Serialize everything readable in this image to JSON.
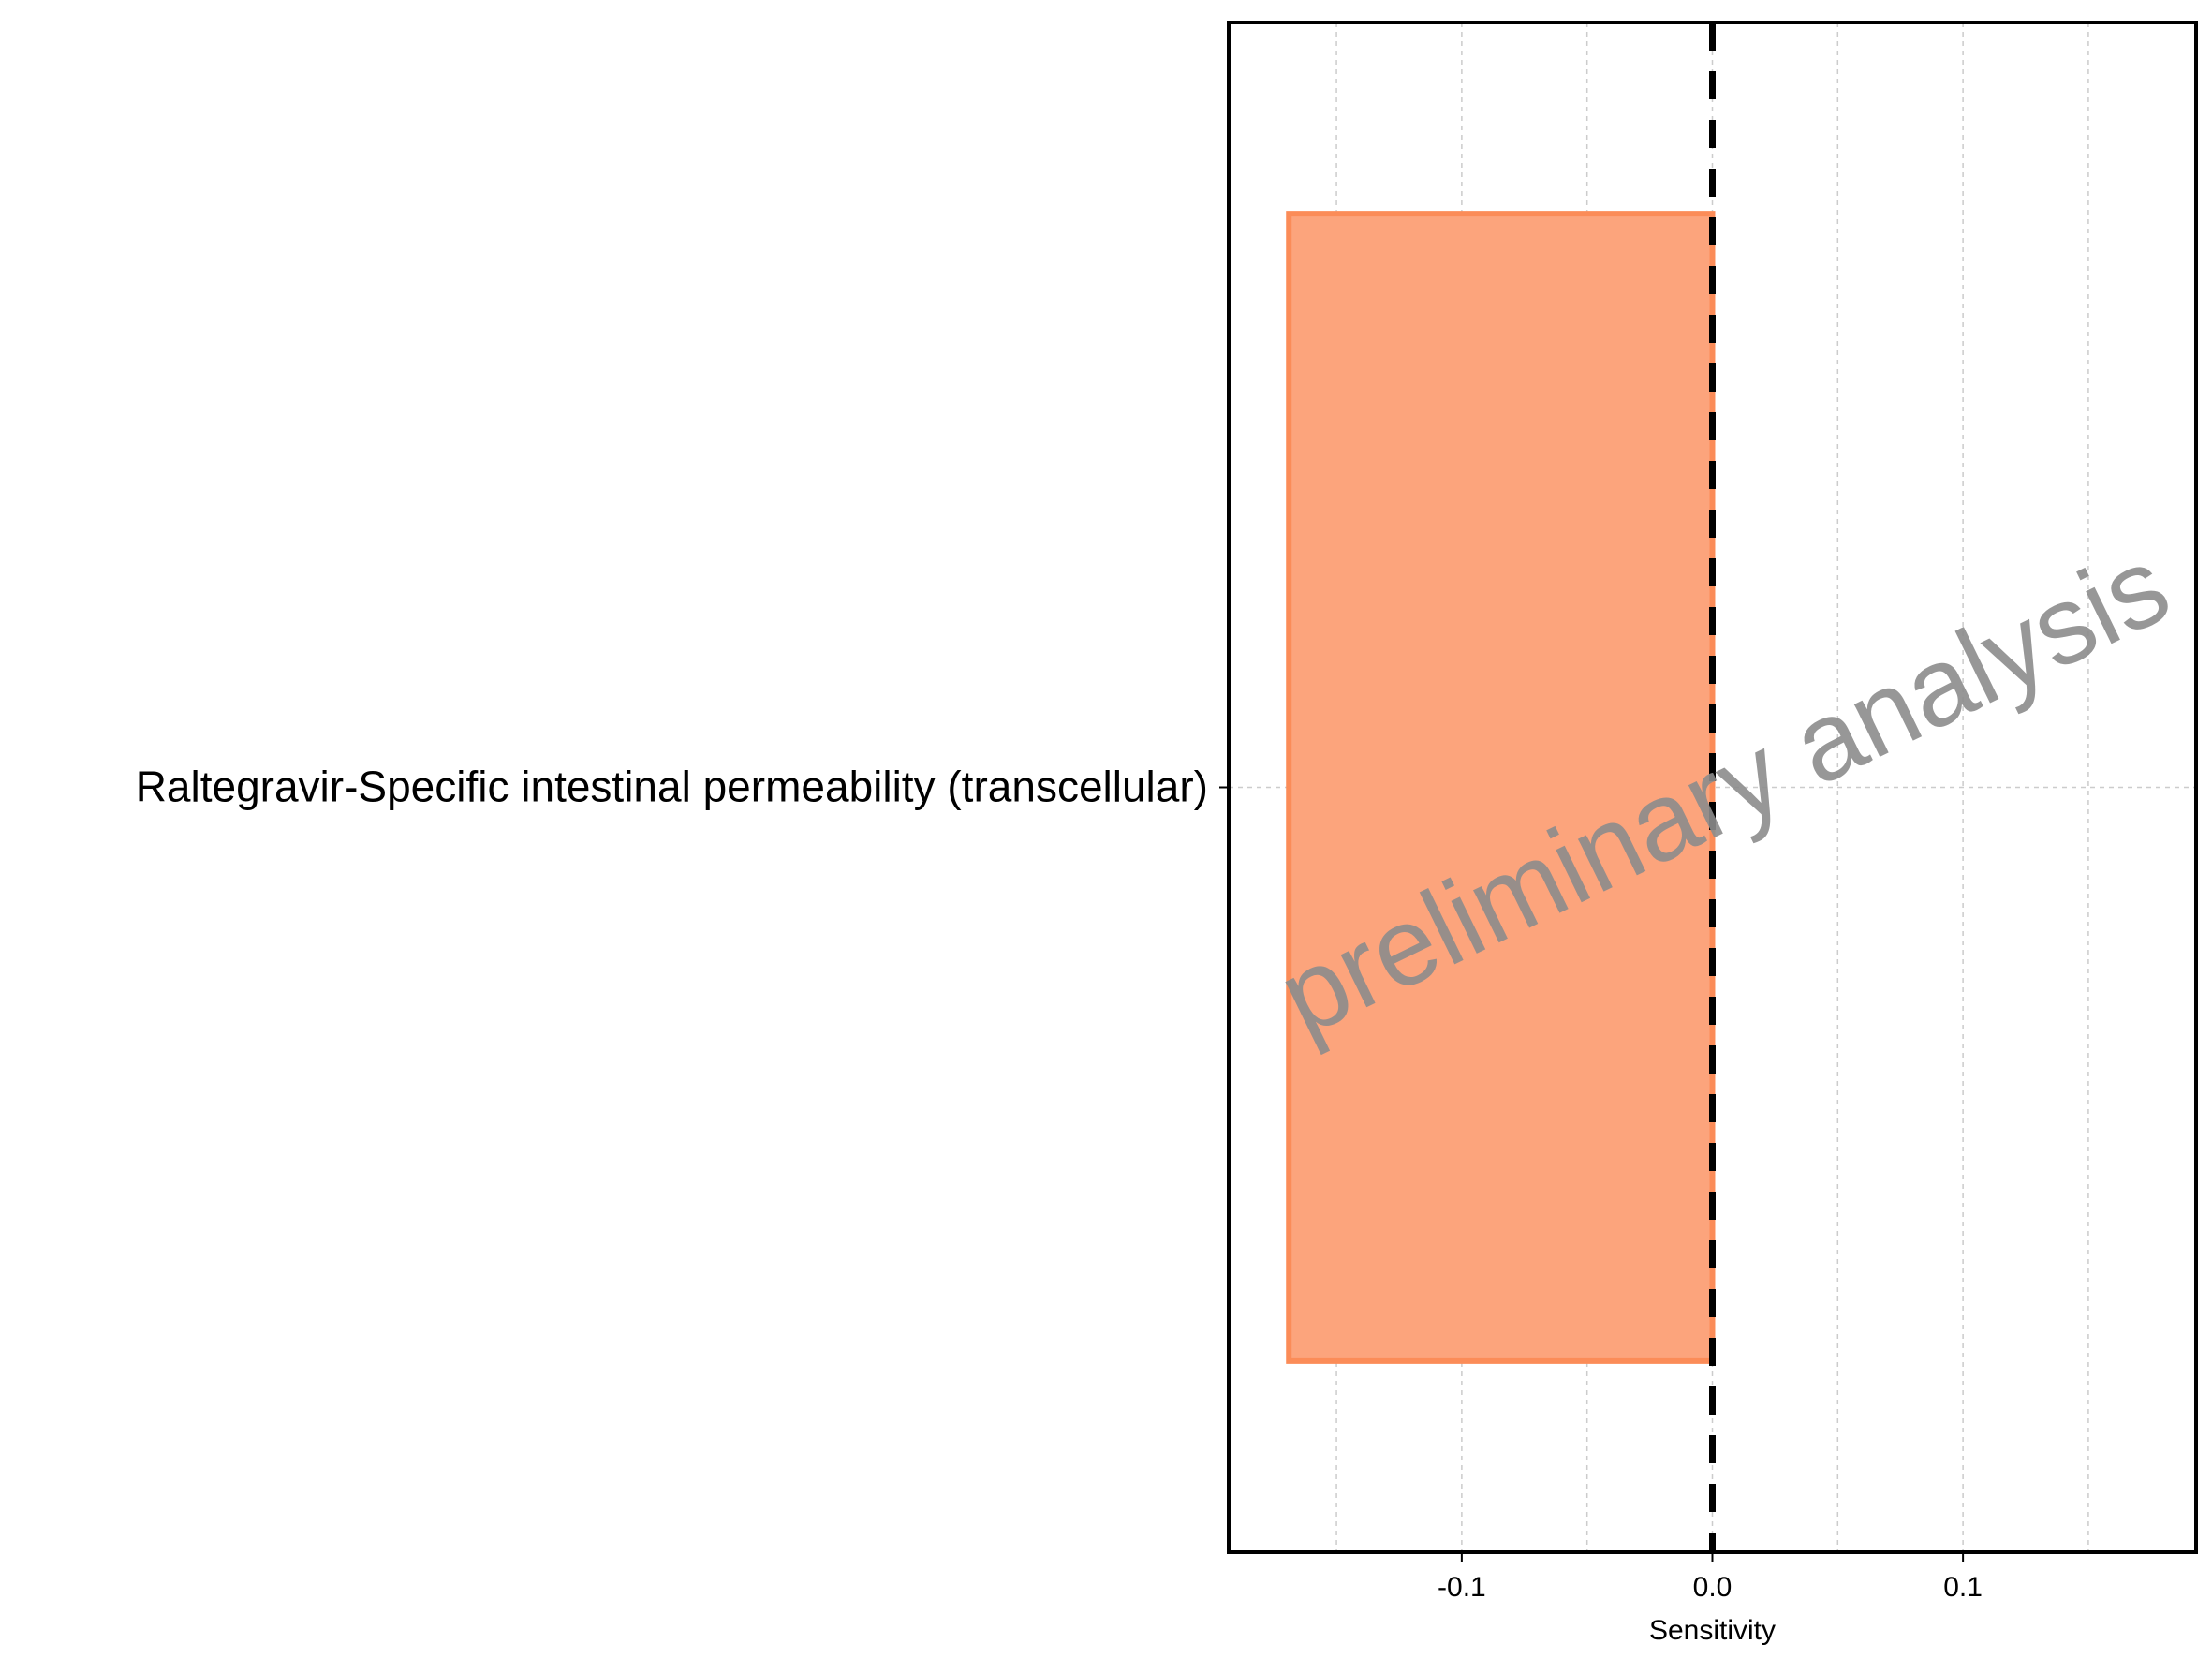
{
  "chart_data": {
    "type": "bar",
    "orientation": "horizontal",
    "categories": [
      "Raltegravir-Specific intestinal permeability (transcellular)"
    ],
    "values": [
      -0.169
    ],
    "xlabel": "Sensitivity",
    "xlim": [
      -0.193,
      0.193
    ],
    "x_ticks": [
      -0.1,
      0.0,
      0.1
    ],
    "x_tick_labels": [
      "-0.1",
      "0.0",
      "0.1"
    ],
    "reference_line": {
      "x": 0.0,
      "style": "dashed"
    },
    "grid": true,
    "legend": "none",
    "bar_fill": "#fca47c",
    "bar_stroke": "#fb8c58",
    "watermark": {
      "text": "preliminary analysis",
      "color": "#8c8c8c"
    }
  }
}
